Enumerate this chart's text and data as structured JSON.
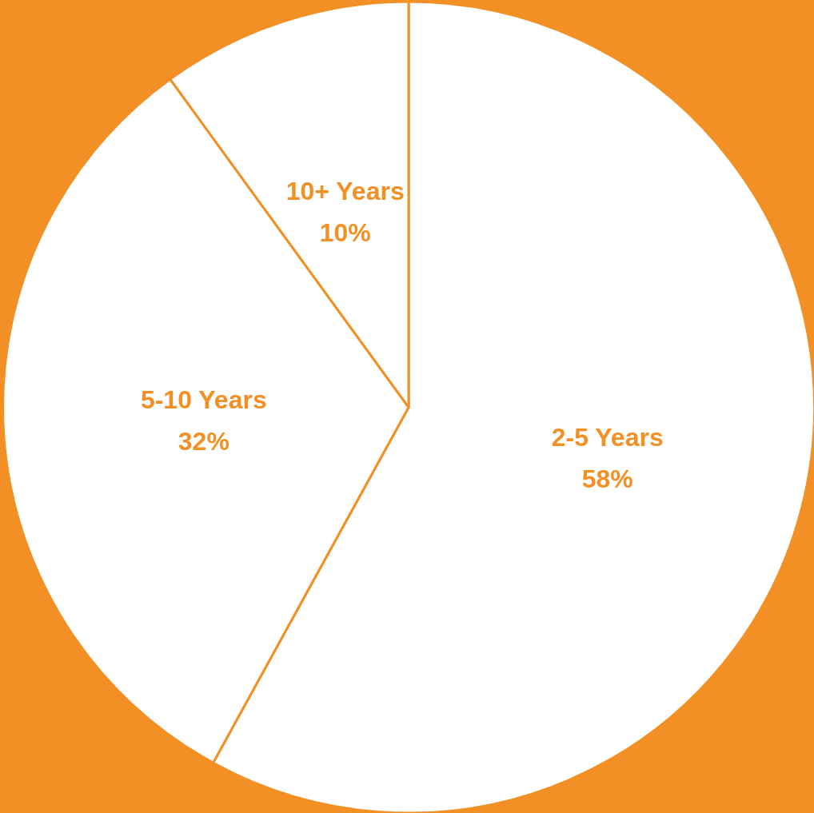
{
  "chart_data": {
    "type": "pie",
    "categories": [
      "2-5 Years",
      "5-10 Years",
      "10+ Years"
    ],
    "values": [
      58,
      32,
      10
    ],
    "colors": [
      "#ffffff",
      "#ffffff",
      "#ffffff"
    ],
    "value_labels": [
      "58%",
      "32%",
      "10%"
    ],
    "legend": false
  }
}
